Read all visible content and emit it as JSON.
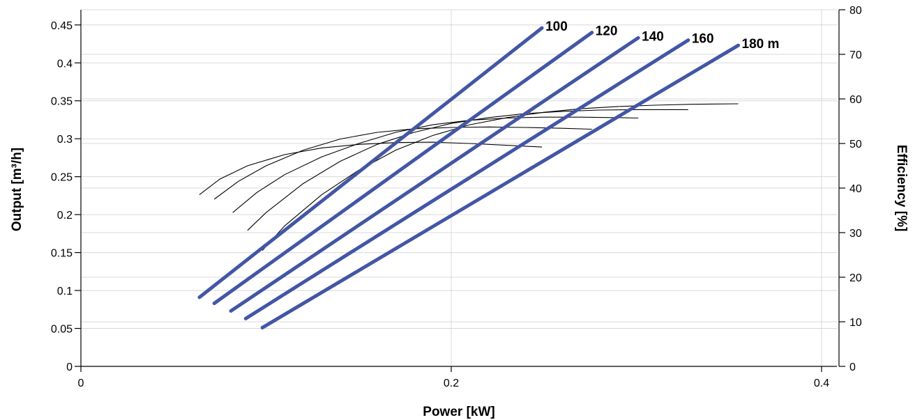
{
  "chart_data": {
    "type": "line",
    "xlabel": "Power [kW]",
    "ylabel": "Output [m³/h]",
    "y2label": "Efficiency [%]",
    "xlim": [
      0,
      0.41
    ],
    "ylim": [
      0,
      0.47
    ],
    "y2lim": [
      0,
      80
    ],
    "x_ticks": [
      {
        "value": 0,
        "label": "0"
      },
      {
        "value": 0.2,
        "label": "0.2"
      },
      {
        "value": 0.4,
        "label": "0.4"
      }
    ],
    "y_ticks": [
      {
        "value": 0,
        "label": "0"
      },
      {
        "value": 0.05,
        "label": "0.05"
      },
      {
        "value": 0.1,
        "label": "0.1"
      },
      {
        "value": 0.15,
        "label": "0.15"
      },
      {
        "value": 0.2,
        "label": "0.2"
      },
      {
        "value": 0.25,
        "label": "0.25"
      },
      {
        "value": 0.3,
        "label": "0.3"
      },
      {
        "value": 0.35,
        "label": "0.35"
      },
      {
        "value": 0.4,
        "label": "0.4"
      },
      {
        "value": 0.45,
        "label": "0.45"
      }
    ],
    "y2_ticks": [
      {
        "value": 0,
        "label": "0"
      },
      {
        "value": 10,
        "label": "10"
      },
      {
        "value": 20,
        "label": "20"
      },
      {
        "value": 30,
        "label": "30"
      },
      {
        "value": 40,
        "label": "40"
      },
      {
        "value": 50,
        "label": "50"
      },
      {
        "value": 60,
        "label": "60"
      },
      {
        "value": 70,
        "label": "70"
      },
      {
        "value": 80,
        "label": "80"
      }
    ],
    "grid": true,
    "line_color": "#4356a5",
    "eff_color": "#000000",
    "series": [
      {
        "label": "100",
        "start": [
          0.064,
          0.091
        ],
        "end": [
          0.249,
          0.446
        ]
      },
      {
        "label": "120",
        "start": [
          0.072,
          0.083
        ],
        "end": [
          0.276,
          0.44
        ]
      },
      {
        "label": "140",
        "start": [
          0.081,
          0.073
        ],
        "end": [
          0.301,
          0.433
        ]
      },
      {
        "label": "160",
        "start": [
          0.089,
          0.063
        ],
        "end": [
          0.328,
          0.43
        ]
      },
      {
        "label": "180 m",
        "start": [
          0.098,
          0.051
        ],
        "end": [
          0.355,
          0.423
        ]
      }
    ],
    "efficiency_curves": [
      {
        "x": [
          0.064,
          0.075,
          0.09,
          0.11,
          0.13,
          0.15,
          0.17,
          0.19,
          0.21,
          0.23,
          0.249
        ],
        "y": [
          38.5,
          42.0,
          45.0,
          47.5,
          49.0,
          49.8,
          50.2,
          50.3,
          50.0,
          49.6,
          49.2
        ]
      },
      {
        "x": [
          0.072,
          0.085,
          0.1,
          0.12,
          0.14,
          0.16,
          0.18,
          0.2,
          0.22,
          0.24,
          0.26,
          0.276
        ],
        "y": [
          37.5,
          41.5,
          45.0,
          48.5,
          51.0,
          52.5,
          53.3,
          53.6,
          53.7,
          53.6,
          53.4,
          53.2
        ]
      },
      {
        "x": [
          0.082,
          0.095,
          0.11,
          0.13,
          0.15,
          0.17,
          0.19,
          0.21,
          0.23,
          0.25,
          0.27,
          0.29,
          0.301
        ],
        "y": [
          34.5,
          39.0,
          43.0,
          47.0,
          50.0,
          52.5,
          54.2,
          55.2,
          55.7,
          55.9,
          55.9,
          55.8,
          55.7
        ]
      },
      {
        "x": [
          0.09,
          0.1,
          0.12,
          0.14,
          0.16,
          0.18,
          0.2,
          0.22,
          0.24,
          0.26,
          0.28,
          0.3,
          0.328
        ],
        "y": [
          30.5,
          34.5,
          41.0,
          46.0,
          49.8,
          52.5,
          54.5,
          55.8,
          56.7,
          57.2,
          57.5,
          57.6,
          57.6
        ]
      },
      {
        "x": [
          0.098,
          0.11,
          0.13,
          0.15,
          0.17,
          0.19,
          0.21,
          0.23,
          0.25,
          0.27,
          0.29,
          0.31,
          0.33,
          0.355
        ],
        "y": [
          26.0,
          31.5,
          38.5,
          44.0,
          48.5,
          51.8,
          54.2,
          55.8,
          57.0,
          57.8,
          58.3,
          58.6,
          58.8,
          58.9
        ]
      }
    ]
  }
}
